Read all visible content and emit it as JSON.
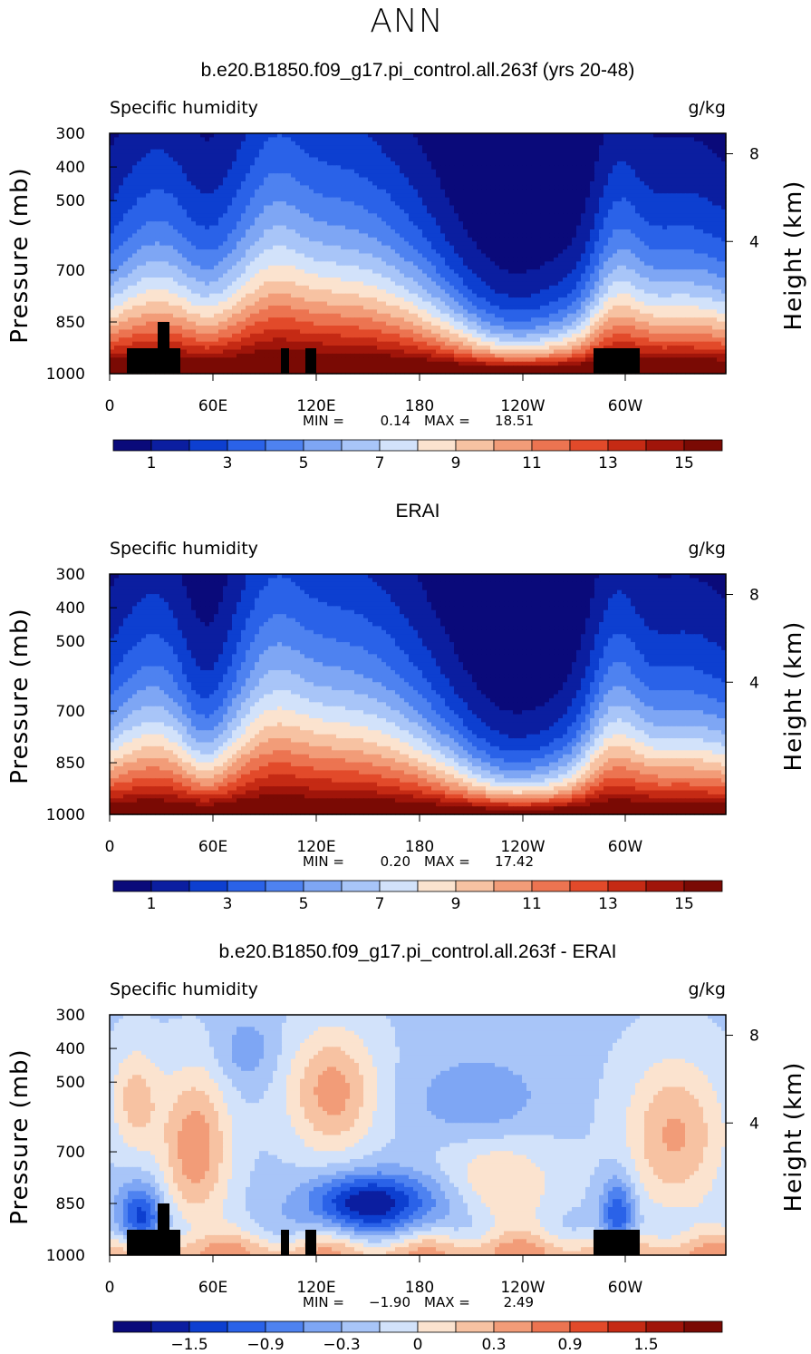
{
  "header": {
    "title": "ANN"
  },
  "chart_data": [
    {
      "type": "heatmap",
      "title": "b.e20.B1850.f09_g17.pi_control.all.263f (yrs 20-48)",
      "left_label": "Specific humidity",
      "right_label": "g/kg",
      "ylabel": "Pressure (mb)",
      "ylabel_right": "Height (km)",
      "xticks": [
        "0",
        "60E",
        "120E",
        "180",
        "120W",
        "60W"
      ],
      "yticks": [
        "300",
        "400",
        "500",
        "700",
        "850",
        "1000"
      ],
      "yticks_right": [
        "8",
        "4"
      ],
      "stats": {
        "min_label": "MIN =",
        "min": "0.14",
        "max_label": "MAX =",
        "max": "18.51"
      },
      "colorbar": {
        "ticks": [
          "1",
          "3",
          "5",
          "7",
          "9",
          "11",
          "13",
          "15"
        ]
      },
      "field": "model"
    },
    {
      "type": "heatmap",
      "title": "ERAI",
      "left_label": "Specific humidity",
      "right_label": "g/kg",
      "ylabel": "Pressure (mb)",
      "ylabel_right": "Height (km)",
      "xticks": [
        "0",
        "60E",
        "120E",
        "180",
        "120W",
        "60W"
      ],
      "yticks": [
        "300",
        "400",
        "500",
        "700",
        "850",
        "1000"
      ],
      "yticks_right": [
        "8",
        "4"
      ],
      "stats": {
        "min_label": "MIN =",
        "min": "0.20",
        "max_label": "MAX =",
        "max": "17.42"
      },
      "colorbar": {
        "ticks": [
          "1",
          "3",
          "5",
          "7",
          "9",
          "11",
          "13",
          "15"
        ]
      },
      "field": "obs"
    },
    {
      "type": "heatmap",
      "title": "b.e20.B1850.f09_g17.pi_control.all.263f - ERAI",
      "left_label": "Specific humidity",
      "right_label": "g/kg",
      "ylabel": "Pressure (mb)",
      "ylabel_right": "Height (km)",
      "xticks": [
        "0",
        "60E",
        "120E",
        "180",
        "120W",
        "60W"
      ],
      "yticks": [
        "300",
        "400",
        "500",
        "700",
        "850",
        "1000"
      ],
      "yticks_right": [
        "8",
        "4"
      ],
      "stats": {
        "min_label": "MIN =",
        "min": "−1.90",
        "max_label": "MAX =",
        "max": "2.49"
      },
      "colorbar": {
        "ticks": [
          "−1.5",
          "−0.9",
          "−0.3",
          "0",
          "0.3",
          "0.9",
          "1.5"
        ]
      },
      "field": "diff"
    }
  ],
  "colors": {
    "palette": [
      "#0a0a7a",
      "#0b1ea0",
      "#0d3fd0",
      "#2a62e8",
      "#4e82f0",
      "#7ea6f4",
      "#a8c5f8",
      "#d2e2fa",
      "#fbe3cf",
      "#f7c2a2",
      "#f29c78",
      "#ec7451",
      "#e24a2a",
      "#c52a14",
      "#a0150a",
      "#7a0a04"
    ],
    "topography": "#000000"
  }
}
